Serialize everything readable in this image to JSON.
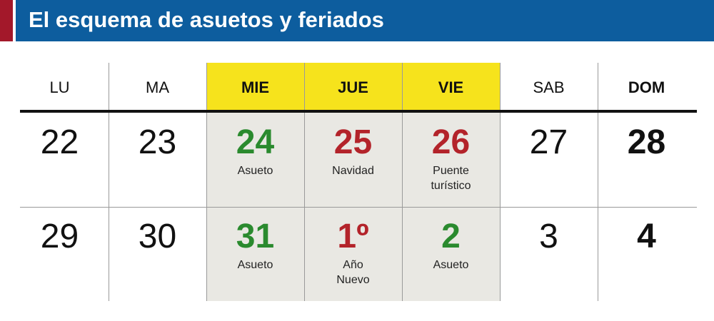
{
  "header": {
    "title": "El esquema de asuetos y feriados"
  },
  "calendar": {
    "days": [
      {
        "label": "LU"
      },
      {
        "label": "MA"
      },
      {
        "label": "MIE",
        "bold": true,
        "background": "#f6e31c"
      },
      {
        "label": "JUE",
        "bold": true,
        "background": "#f6e31c"
      },
      {
        "label": "VIE",
        "bold": true,
        "background": "#f6e31c"
      },
      {
        "label": "SAB"
      },
      {
        "label": "DOM",
        "bold": true
      }
    ],
    "weeks": [
      [
        {
          "day": "22"
        },
        {
          "day": "23"
        },
        {
          "day": "24",
          "color": "#2a8a2e",
          "bold": true,
          "note": [
            "Asueto"
          ]
        },
        {
          "day": "25",
          "color": "#b3232a",
          "bold": true,
          "note": [
            "Navidad"
          ]
        },
        {
          "day": "26",
          "color": "#b3232a",
          "bold": true,
          "note": [
            "Puente",
            "turístico"
          ]
        },
        {
          "day": "27"
        },
        {
          "day": "28",
          "bold": true
        }
      ],
      [
        {
          "day": "29"
        },
        {
          "day": "30"
        },
        {
          "day": "31",
          "color": "#2a8a2e",
          "bold": true,
          "note": [
            "Asueto"
          ]
        },
        {
          "day": "1º",
          "color": "#b3232a",
          "bold": true,
          "note": [
            "Año",
            "Nuevo"
          ]
        },
        {
          "day": "2",
          "color": "#2a8a2e",
          "bold": true,
          "note": [
            "Asueto"
          ]
        },
        {
          "day": "3"
        },
        {
          "day": "4",
          "bold": true
        }
      ]
    ]
  }
}
